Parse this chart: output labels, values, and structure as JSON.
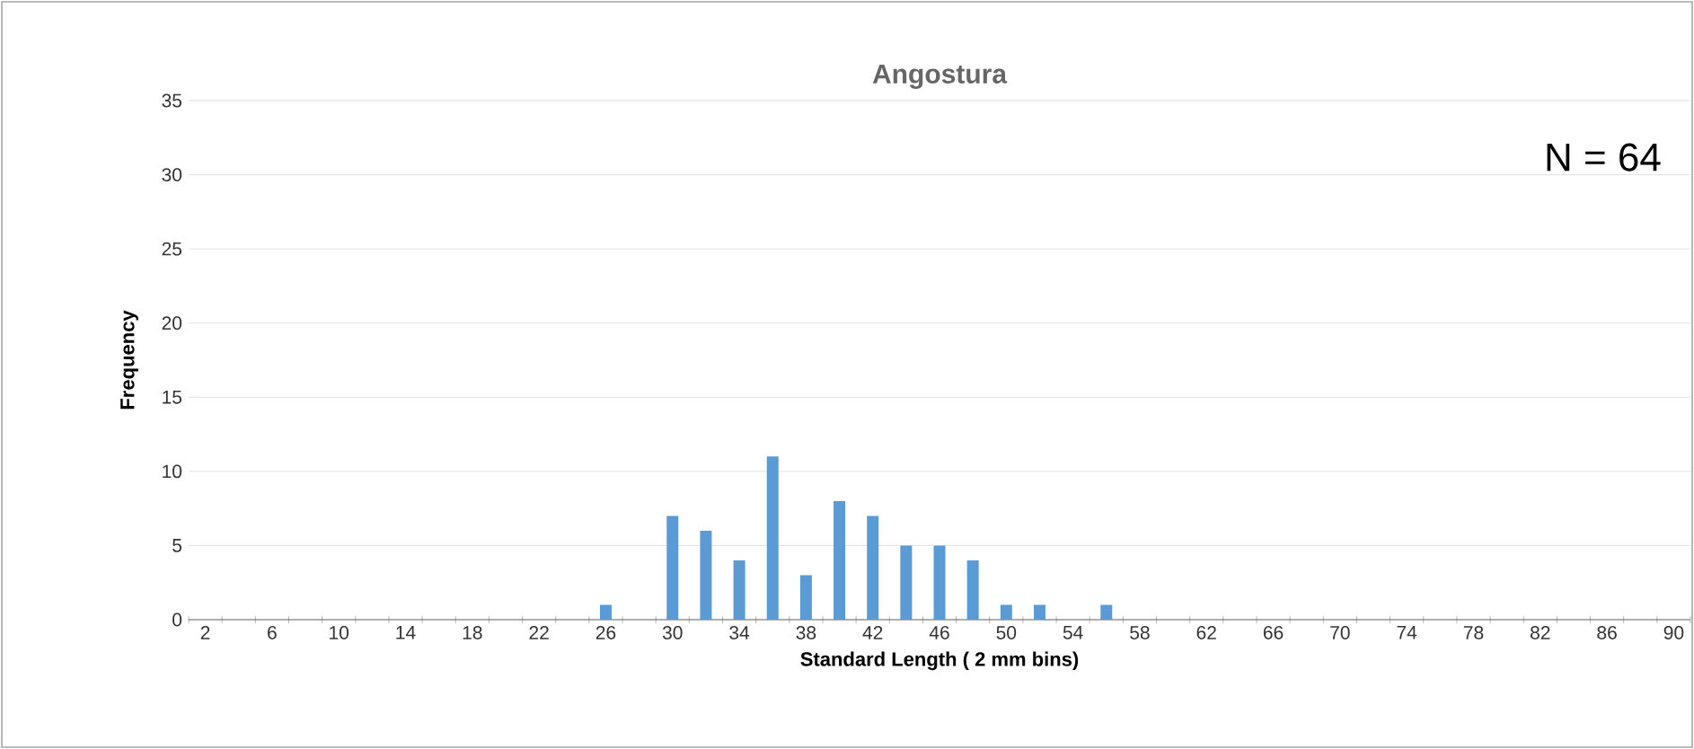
{
  "chart_data": {
    "type": "bar",
    "title": "Angostura",
    "xlabel": "Standard Length ( 2 mm bins)",
    "ylabel": "Frequency",
    "categories": [
      "2",
      null,
      "6",
      null,
      "10",
      null,
      "14",
      null,
      "18",
      null,
      "22",
      null,
      "26",
      null,
      "30",
      null,
      "34",
      null,
      "38",
      null,
      "42",
      null,
      "46",
      null,
      "50",
      null,
      "54",
      null,
      "58",
      null,
      "62",
      null,
      "66",
      null,
      "70",
      null,
      "74",
      null,
      "78",
      null,
      "82",
      null,
      "86",
      null,
      "90"
    ],
    "values": [
      0,
      0,
      0,
      0,
      0,
      0,
      0,
      0,
      0,
      0,
      0,
      0,
      1,
      0,
      7,
      6,
      4,
      11,
      3,
      8,
      7,
      5,
      5,
      4,
      1,
      1,
      0,
      1,
      0,
      0,
      0,
      0,
      0,
      0,
      0,
      0,
      0,
      0,
      0,
      0,
      0,
      0,
      0,
      0,
      0
    ],
    "color": "#5b9bd5",
    "ylim": [
      0,
      35
    ],
    "yticks": [
      0,
      5,
      10,
      15,
      20,
      25,
      30,
      35
    ],
    "grid": "y",
    "annotations": [
      "N = 64"
    ]
  }
}
